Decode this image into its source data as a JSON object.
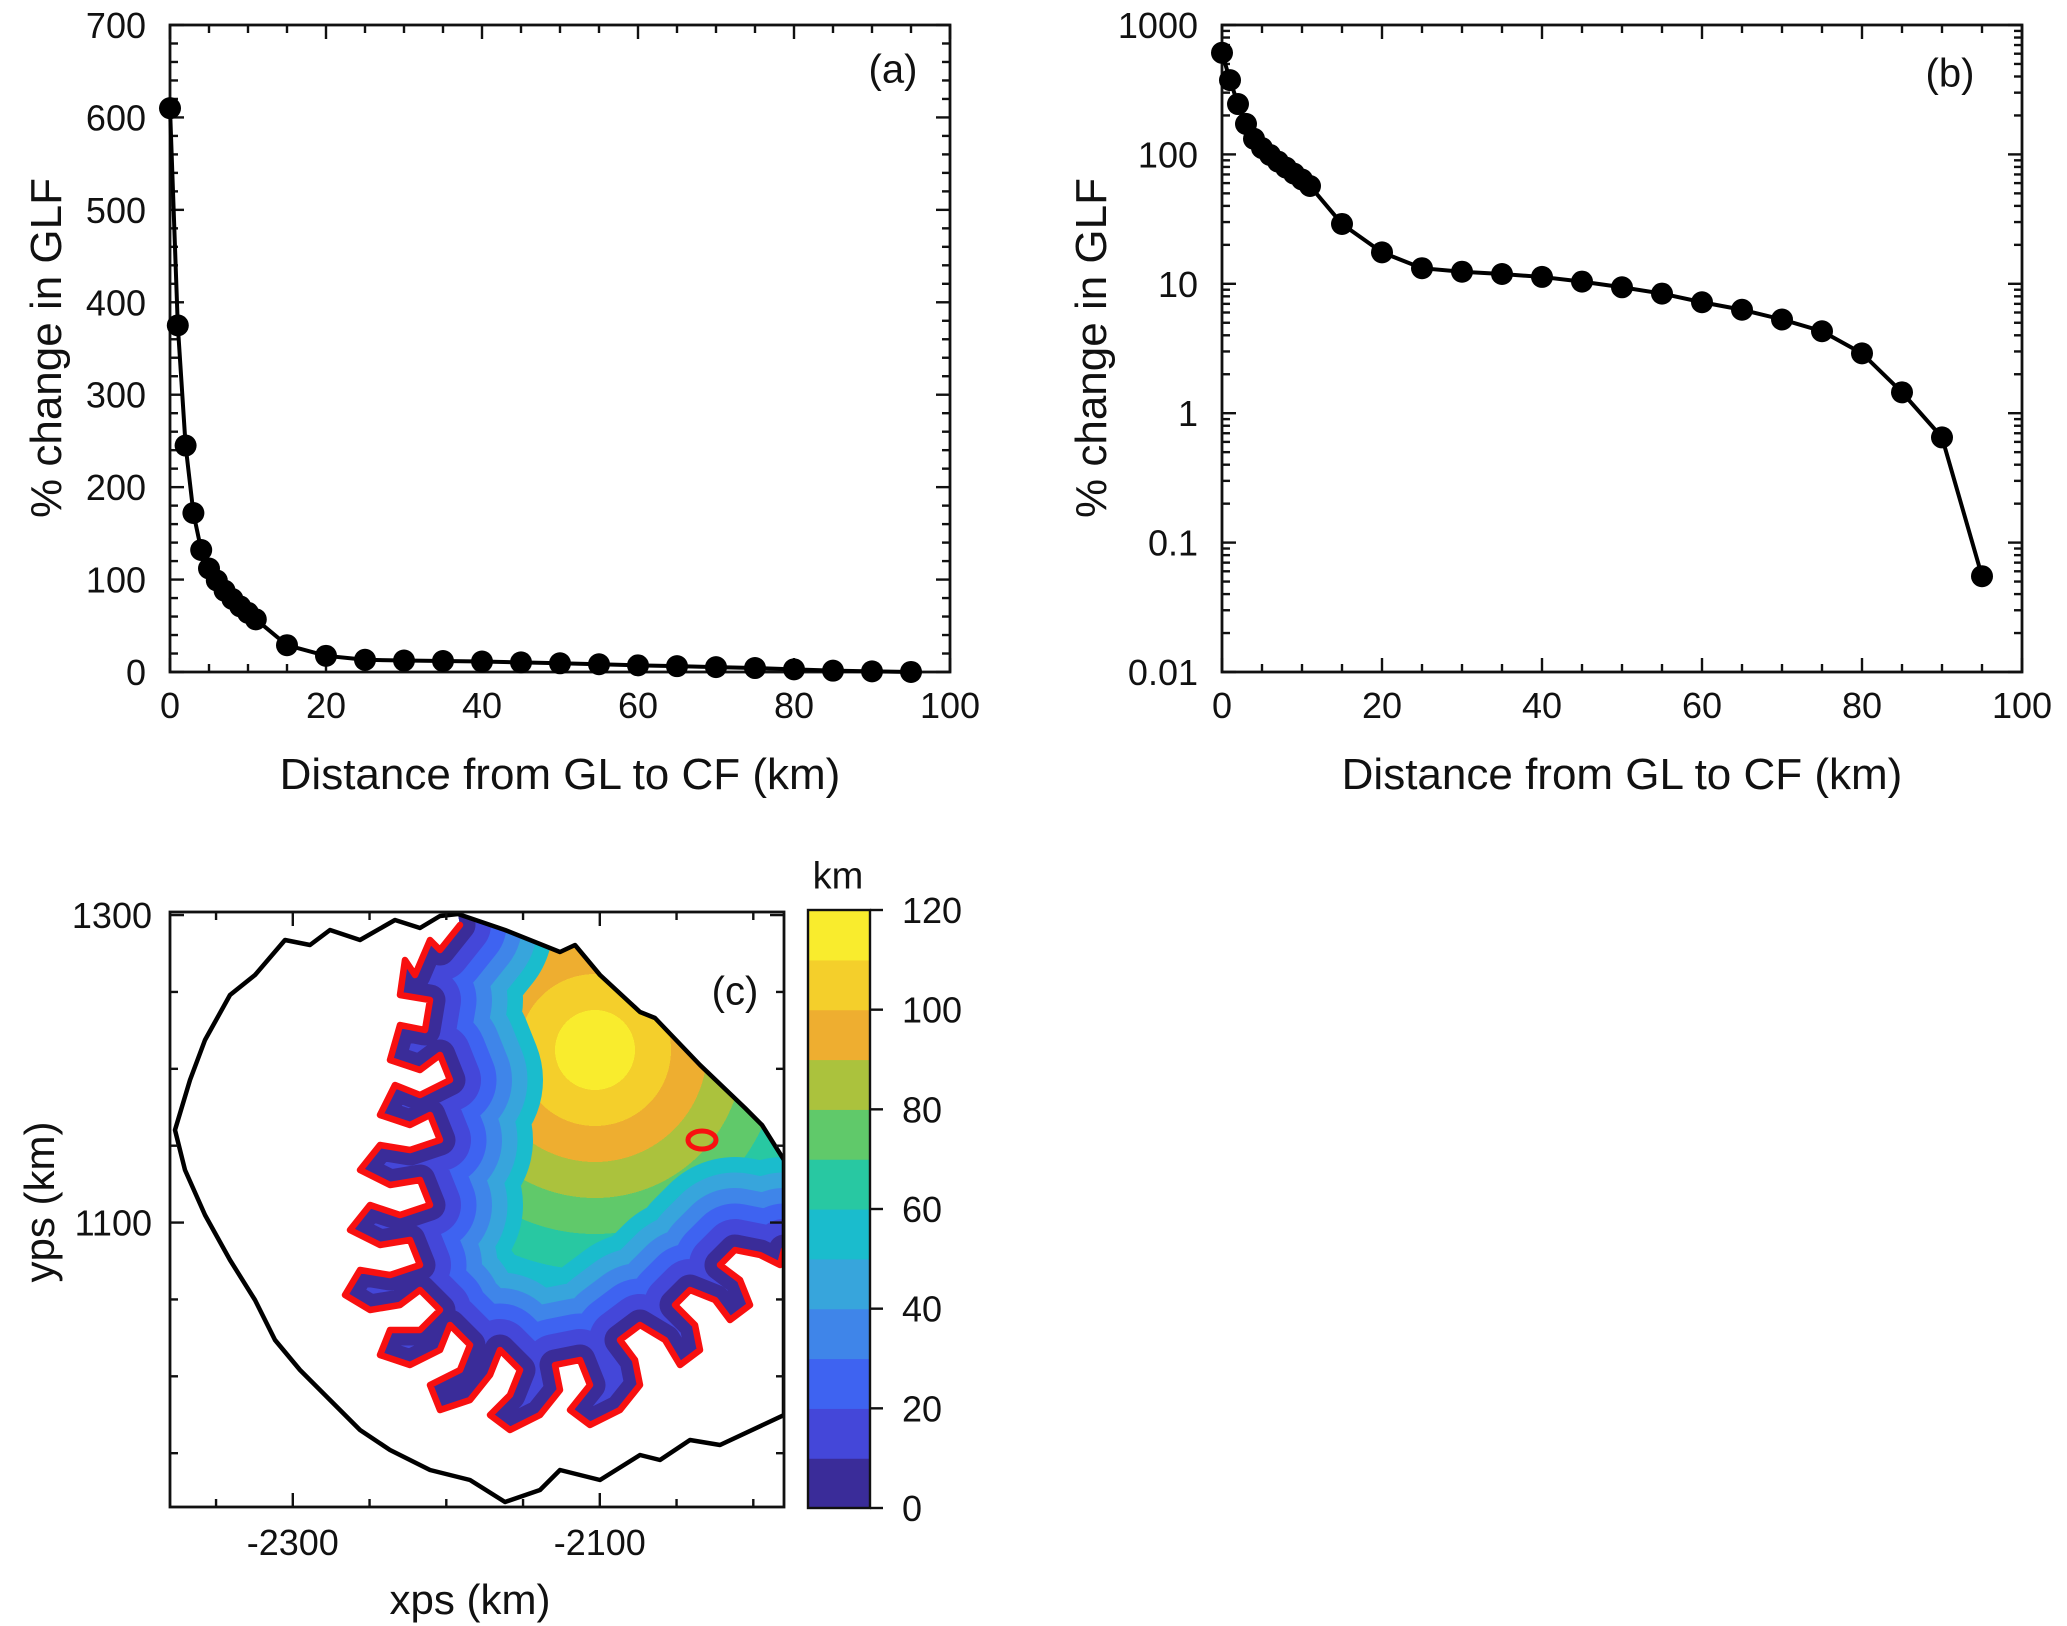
{
  "figure": {
    "background": "#ffffff",
    "description": "Three-panel figure: percent change in grounding-line flux (GLF) versus distance from grounding line (GL) to calving front (CF) on linear (a) and logarithmic (b) y-axes, and a map (c) of distance (km) over a glacier drainage basin with grounding line in red."
  },
  "chart_data": [
    {
      "panel": "a",
      "panel_label": "(a)",
      "type": "line",
      "marker": "filled-circle",
      "color": "#000000",
      "xlabel": "Distance from GL to CF (km)",
      "ylabel": "% change in GLF",
      "xlim": [
        0,
        100
      ],
      "ylim": [
        0,
        700
      ],
      "xticks": [
        0,
        20,
        40,
        60,
        80,
        100
      ],
      "yticks": [
        0,
        100,
        200,
        300,
        400,
        500,
        600,
        700
      ],
      "yscale": "linear",
      "grid": false,
      "x": [
        0,
        1,
        2,
        3,
        4,
        5,
        6,
        7,
        8,
        9,
        10,
        11,
        15,
        20,
        25,
        30,
        35,
        40,
        45,
        50,
        55,
        60,
        65,
        70,
        75,
        80,
        85,
        90,
        95
      ],
      "y": [
        610,
        375,
        245,
        172,
        132,
        112,
        99,
        88,
        79,
        71,
        64,
        57,
        29,
        17.5,
        13.2,
        12.4,
        11.9,
        11.3,
        10.4,
        9.4,
        8.4,
        7.2,
        6.3,
        5.3,
        4.3,
        2.9,
        1.45,
        0.65,
        0.055
      ]
    },
    {
      "panel": "b",
      "panel_label": "(b)",
      "type": "line",
      "marker": "filled-circle",
      "color": "#000000",
      "xlabel": "Distance from GL to CF (km)",
      "ylabel": "% change in GLF",
      "xlim": [
        0,
        100
      ],
      "ylim": [
        0.01,
        1000
      ],
      "xticks": [
        0,
        20,
        40,
        60,
        80,
        100
      ],
      "yticks": [
        0.01,
        0.1,
        1,
        10,
        100,
        1000
      ],
      "yscale": "log",
      "grid": false,
      "x": [
        0,
        1,
        2,
        3,
        4,
        5,
        6,
        7,
        8,
        9,
        10,
        11,
        15,
        20,
        25,
        30,
        35,
        40,
        45,
        50,
        55,
        60,
        65,
        70,
        75,
        80,
        85,
        90,
        95
      ],
      "y": [
        610,
        375,
        245,
        172,
        132,
        112,
        99,
        88,
        79,
        71,
        64,
        57,
        29,
        17.5,
        13.2,
        12.4,
        11.9,
        11.3,
        10.4,
        9.4,
        8.4,
        7.2,
        6.3,
        5.3,
        4.3,
        2.9,
        1.45,
        0.65,
        0.055
      ]
    },
    {
      "panel": "c",
      "panel_label": "(c)",
      "type": "contour-map",
      "xlabel": "xps (km)",
      "ylabel": "yps (km)",
      "xlim": [
        -2380,
        -1980
      ],
      "ylim": [
        915,
        1302
      ],
      "xticks": [
        -2300,
        -2100
      ],
      "yticks": [
        1100,
        1300
      ],
      "field": "distance from GL to CF",
      "contour_interval_km": 10,
      "value_range": [
        0,
        120
      ],
      "colorbar": {
        "title": "km",
        "ticks": [
          0,
          20,
          40,
          60,
          80,
          100,
          120
        ],
        "band_colors": [
          "#3a2c99",
          "#4447d9",
          "#3e63f1",
          "#3f85e9",
          "#37a5dc",
          "#1abccd",
          "#28c8a2",
          "#60c96a",
          "#abc23d",
          "#eeae30",
          "#f4cf2b",
          "#f9ec2d"
        ]
      },
      "map_features": {
        "basin_outline_color": "#000000",
        "grounding_line_color": "#f81010"
      }
    }
  ]
}
